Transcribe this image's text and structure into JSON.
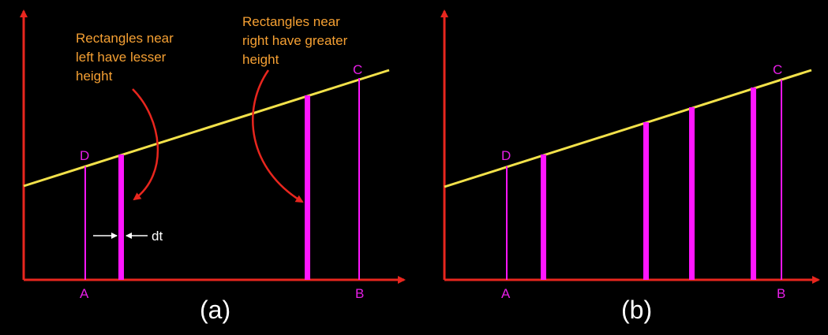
{
  "colors": {
    "axis": "#e8261e",
    "line": "#f2e14a",
    "strip": "#ff16ff",
    "point_label": "#e81ee8",
    "annotation": "#f5a033",
    "caption": "#ffffff"
  },
  "panel_a": {
    "caption": "(a)",
    "point_labels": {
      "a": "A",
      "b": "B",
      "c": "C",
      "d": "D"
    },
    "annotation_left": [
      "Rectangles near",
      "left have lesser",
      "height"
    ],
    "annotation_right": [
      "Rectangles near",
      "right have greater",
      "height"
    ],
    "width_label": "dt"
  },
  "panel_b": {
    "caption": "(b)",
    "point_labels": {
      "a": "A",
      "b": "B",
      "c": "C",
      "d": "D"
    }
  }
}
